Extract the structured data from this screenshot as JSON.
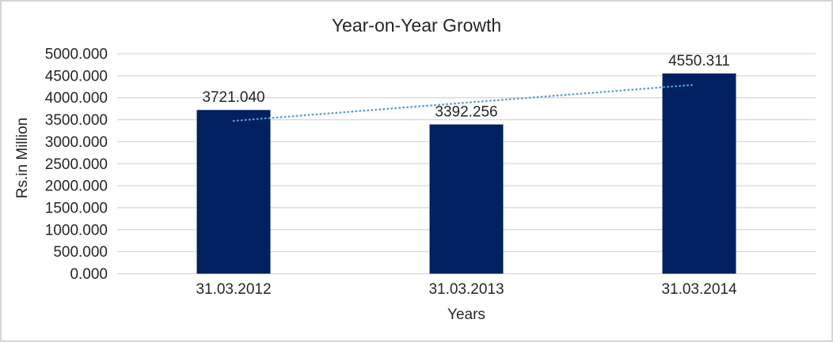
{
  "chart_data": {
    "type": "bar",
    "title": "Year-on-Year Growth",
    "xlabel": "Years",
    "ylabel": "Rs.in Million",
    "categories": [
      "31.03.2012",
      "31.03.2013",
      "31.03.2014"
    ],
    "values": [
      3721.04,
      3392.256,
      4550.311
    ],
    "value_labels": [
      "3721.040",
      "3392.256",
      "4550.311"
    ],
    "ylim": [
      0,
      5000
    ],
    "ytick_step": 500,
    "ytick_labels": [
      "5000.000",
      "4500.000",
      "4000.000",
      "3500.000",
      "3000.000",
      "2500.000",
      "2000.000",
      "1500.000",
      "1000.000",
      "500.000",
      "0.000"
    ],
    "grid": true,
    "legend": "none",
    "trendline": {
      "kind": "linear",
      "style": "dotted",
      "endpoint_values": [
        3473.2,
        4302.5
      ]
    },
    "colors": {
      "bar": "#002060",
      "trendline": "#5B9BD5",
      "gridline": "#D9D9D9",
      "text": "#262626",
      "frame_border": "#D5D5D5",
      "background": "#FFFFFF"
    }
  }
}
